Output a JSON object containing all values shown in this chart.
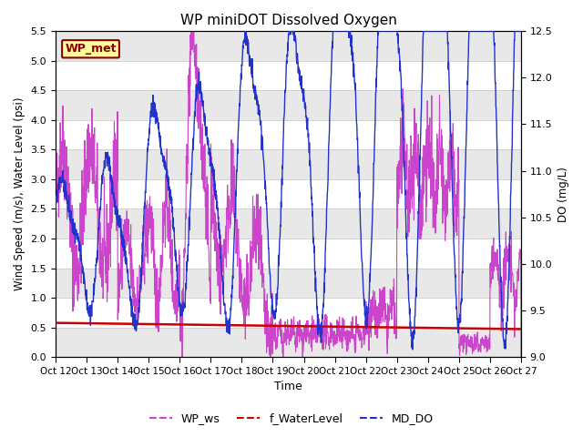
{
  "title": "WP miniDOT Dissolved Oxygen",
  "ylabel_left": "Wind Speed (m/s), Water Level (psi)",
  "ylabel_right": "DO (mg/L)",
  "xlabel": "Time",
  "ylim_left": [
    0,
    5.5
  ],
  "ylim_right": [
    9.0,
    12.5
  ],
  "annotation_text": "WP_met",
  "annotation_facecolor": "#FFFF99",
  "annotation_edgecolor": "#8B0000",
  "annotation_textcolor": "#8B0000",
  "legend_labels": [
    "WP_ws",
    "f_WaterLevel",
    "MD_DO"
  ],
  "legend_colors": [
    "#CC44CC",
    "#CC0000",
    "#2233CC"
  ],
  "background_stripe_color": "#E8E8E8",
  "wp_ws_color": "#CC44CC",
  "f_waterlevel_color": "#CC0000",
  "md_do_color": "#2233CC",
  "xtick_labels": [
    "Oct 12",
    "Oct 13",
    "Oct 14",
    "Oct 15",
    "Oct 16",
    "Oct 17",
    "Oct 18",
    "Oct 19",
    "Oct 20",
    "Oct 21",
    "Oct 22",
    "Oct 23",
    "Oct 24",
    "Oct 25",
    "Oct 26",
    "Oct 27"
  ]
}
